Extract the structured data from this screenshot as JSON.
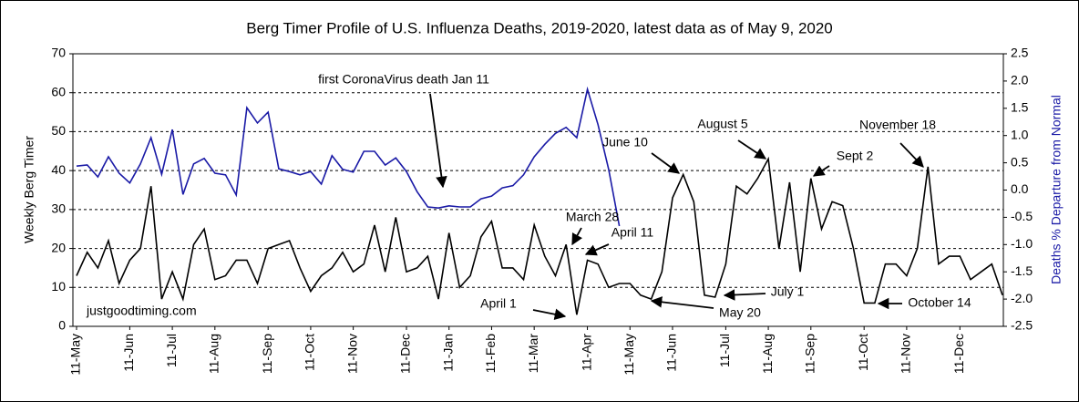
{
  "chart_data": {
    "type": "line",
    "title": "Berg Timer Profile of U.S. Influenza Deaths, 2019-2020, latest data as of May 9, 2020",
    "y_label": "Weekly Berg Timer",
    "y2_label": "Deaths % Departure from Normal",
    "watermark": "justgoodtiming.com",
    "categories": [
      "11-May",
      null,
      null,
      null,
      null,
      "11-Jun",
      null,
      null,
      null,
      "11-Jul",
      null,
      null,
      null,
      "11-Aug",
      null,
      null,
      null,
      null,
      "11-Sep",
      null,
      null,
      null,
      "11-Oct",
      null,
      null,
      null,
      "11-Nov",
      null,
      null,
      null,
      null,
      "11-Dec",
      null,
      null,
      null,
      "11-Jan",
      null,
      null,
      null,
      "11-Feb",
      null,
      null,
      null,
      "11-Mar",
      null,
      null,
      null,
      null,
      "11-Apr",
      null,
      null,
      null,
      "11-May",
      null,
      null,
      null,
      "11-Jun",
      null,
      null,
      null,
      null,
      "11-Jul",
      null,
      null,
      null,
      "11-Aug",
      null,
      null,
      null,
      "11-Sep",
      null,
      null,
      null,
      null,
      "11-Oct",
      null,
      null,
      null,
      "11-Nov",
      null,
      null,
      null,
      null,
      "11-Dec",
      null,
      null,
      null,
      null
    ],
    "series": [
      {
        "name": "Weekly Berg Timer",
        "color": "#000000",
        "axis": "y",
        "values": [
          13,
          19,
          15,
          22,
          11,
          17,
          20,
          36,
          7,
          14,
          7,
          21,
          25,
          12,
          13,
          17,
          17,
          11,
          20,
          21,
          22,
          15,
          9,
          13,
          15,
          19,
          14,
          16,
          26,
          14,
          28,
          14,
          15,
          18,
          7,
          24,
          10,
          13,
          23,
          27,
          15,
          15,
          12,
          26,
          18,
          13,
          21,
          3,
          17,
          16,
          10,
          11,
          11,
          8,
          7,
          14,
          33,
          39,
          32,
          8,
          7.5,
          16,
          36,
          34,
          38,
          43,
          20,
          37,
          14,
          38,
          25,
          32,
          31,
          20,
          6,
          6,
          16,
          16,
          13,
          20,
          41,
          16,
          18,
          18,
          12,
          14,
          16,
          8
        ]
      },
      {
        "name": "Deaths % Departure from Normal",
        "color": "#1a1aa6",
        "axis": "y2",
        "values": [
          0.44,
          0.46,
          0.24,
          0.61,
          0.31,
          0.13,
          0.48,
          0.96,
          0.29,
          1.11,
          -0.08,
          0.48,
          0.58,
          0.31,
          0.28,
          -0.09,
          1.51,
          1.23,
          1.43,
          0.39,
          0.34,
          0.28,
          0.34,
          0.11,
          0.63,
          0.38,
          0.33,
          0.71,
          0.71,
          0.46,
          0.59,
          0.34,
          -0.03,
          -0.31,
          -0.33,
          -0.29,
          -0.31,
          -0.31,
          -0.16,
          -0.11,
          0.04,
          0.08,
          0.28,
          0.61,
          0.84,
          1.04,
          1.15,
          0.96,
          1.85,
          1.2,
          0.38,
          -0.66,
          null,
          null,
          null,
          null,
          null,
          null,
          null,
          null,
          null,
          null,
          null,
          null,
          null,
          null,
          null,
          null,
          null,
          null,
          null,
          null,
          null,
          null,
          null,
          null,
          null,
          null,
          null,
          null,
          null,
          null,
          null,
          null,
          null,
          null,
          null,
          null
        ]
      }
    ],
    "ylim": [
      0,
      70
    ],
    "yticks": [
      0,
      10,
      20,
      30,
      40,
      50,
      60,
      70
    ],
    "y2lim": [
      -2.5,
      2.5
    ],
    "y2ticks": [
      2.5,
      {
        "value": 2,
        "label": "2.0"
      },
      1.5,
      {
        "value": 1,
        "label": "1.0"
      },
      0.5,
      {
        "value": 0,
        "label": "0.0"
      },
      -0.5,
      {
        "value": -1,
        "label": "-1.0"
      },
      -1.5,
      {
        "value": -2,
        "label": "-2.0"
      },
      -2.5
    ],
    "grid": true,
    "annotations": [
      "first CoronaVirus death Jan 11",
      "June 10",
      "August 5",
      "Sept 2",
      "November 18",
      "March 28",
      "April 11",
      "April 1",
      "May 20",
      "July 1",
      "October 14"
    ]
  }
}
